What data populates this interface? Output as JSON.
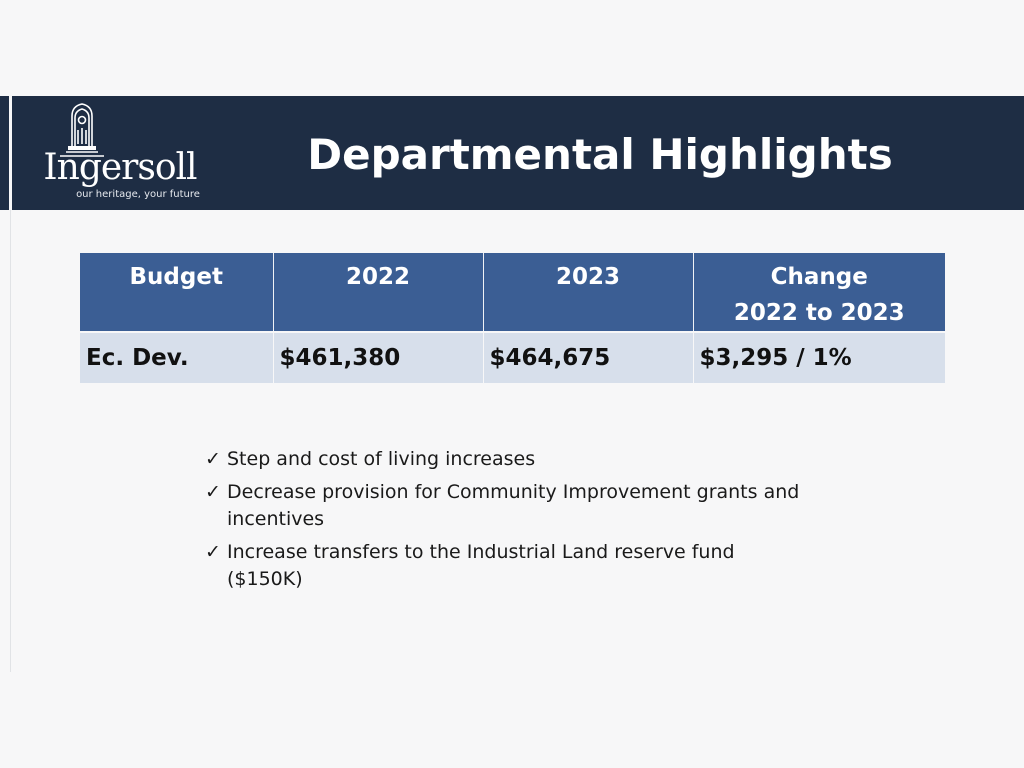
{
  "slide": {
    "title": "Departmental Highlights",
    "logo": {
      "name": "Ingersoll",
      "tagline": "our heritage, your future"
    },
    "table": {
      "headers": [
        {
          "line1": "Budget",
          "line2": ""
        },
        {
          "line1": "2022",
          "line2": ""
        },
        {
          "line1": "2023",
          "line2": ""
        },
        {
          "line1": "Change",
          "line2": "2022 to 2023"
        }
      ],
      "rows": [
        {
          "budget": "Ec. Dev.",
          "y2022": "$461,380",
          "y2023": "$464,675",
          "change": "$3,295 / 1%"
        }
      ]
    },
    "bullets": [
      {
        "icon": "checkmark-icon",
        "glyph": "✓",
        "text": "Step and cost of living increases"
      },
      {
        "icon": "checkmark-icon",
        "glyph": "✓",
        "text": "Decrease provision for Community Improvement grants and incentives"
      },
      {
        "icon": "checkmark-icon",
        "glyph": "✓",
        "text": "Increase transfers to the Industrial Land reserve fund ($150K)"
      }
    ],
    "colors": {
      "banner": "#1e2d44",
      "table_header": "#3b5e94",
      "table_row": "#d7dfeb",
      "background": "#f7f7f8"
    }
  }
}
